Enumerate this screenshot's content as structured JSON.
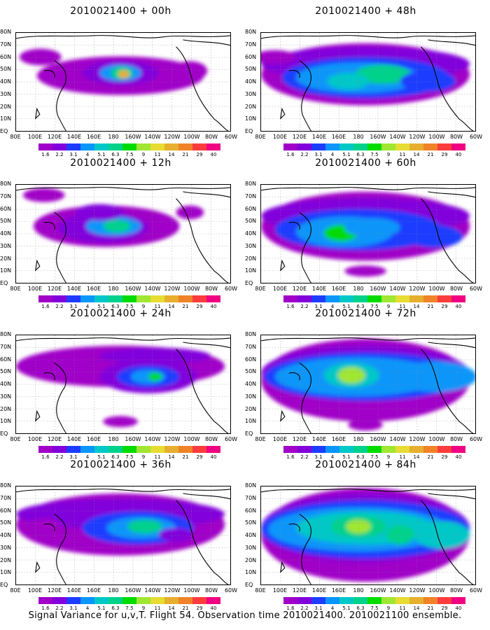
{
  "colors": [
    "#a000c8",
    "#8200dc",
    "#1e3cff",
    "#0a96fa",
    "#00c8c8",
    "#00d28c",
    "#00dc00",
    "#a0e632",
    "#e6dc32",
    "#e6af2d",
    "#f08228",
    "#fa3c3c",
    "#f00082"
  ],
  "panels": [
    {
      "title": "2010021400 + 00h"
    },
    {
      "title": "2010021400 + 48h"
    },
    {
      "title": "2010021400 + 12h"
    },
    {
      "title": "2010021400 + 60h"
    },
    {
      "title": "2010021400 + 24h"
    },
    {
      "title": "2010021400 + 72h"
    },
    {
      "title": "2010021400 + 36h"
    },
    {
      "title": "2010021400 + 84h"
    }
  ],
  "lat_labels": [
    "80N",
    "70N",
    "60N",
    "50N",
    "40N",
    "30N",
    "20N",
    "10N",
    "EQ"
  ],
  "lon_labels": [
    "80E",
    "100E",
    "120E",
    "140E",
    "160E",
    "180",
    "160W",
    "140W",
    "120W",
    "100W",
    "80W",
    "60W"
  ],
  "colorbar_labels": [
    "1.6",
    "2.2",
    "3.1",
    "4",
    "5.1",
    "6.3",
    "7.5",
    "9",
    "11",
    "14",
    "21",
    "29",
    "40"
  ],
  "caption": "Signal Variance for u,v,T. Flight 54. Observation time 2010021400. 2010021100 ensemble."
}
